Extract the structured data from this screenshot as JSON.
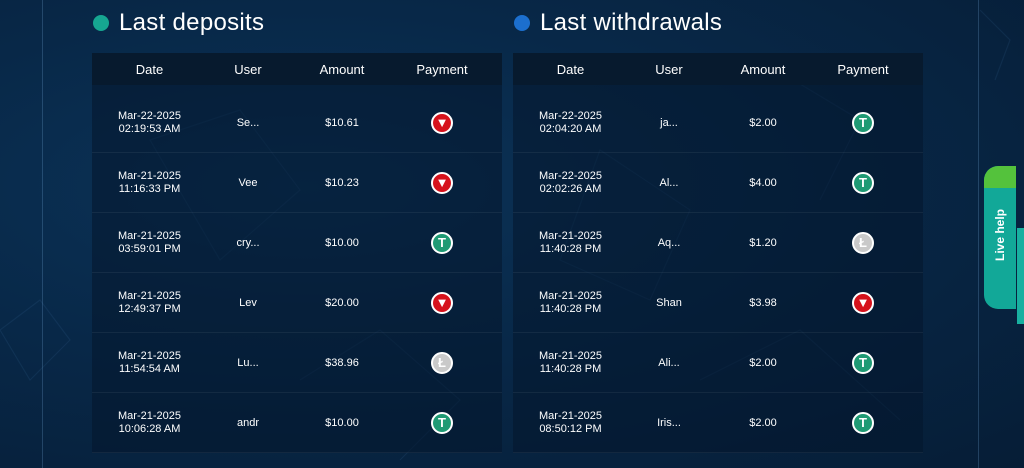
{
  "colors": {
    "deposits_dot": "#16a691",
    "withdrawals_dot": "#1c6fce",
    "live_help": "#12a898"
  },
  "deposits": {
    "title": "Last deposits",
    "headers": [
      "Date",
      "User",
      "Amount",
      "Payment"
    ],
    "rows": [
      {
        "date": "Mar-22-2025",
        "time": "02:19:53 AM",
        "user": "Se...",
        "amount": "$10.61",
        "payment": "tron-icon"
      },
      {
        "date": "Mar-21-2025",
        "time": "11:16:33 PM",
        "user": "Vee",
        "amount": "$10.23",
        "payment": "tron-icon"
      },
      {
        "date": "Mar-21-2025",
        "time": "03:59:01 PM",
        "user": "cry...",
        "amount": "$10.00",
        "payment": "tether-icon"
      },
      {
        "date": "Mar-21-2025",
        "time": "12:49:37 PM",
        "user": "Lev",
        "amount": "$20.00",
        "payment": "tron-icon"
      },
      {
        "date": "Mar-21-2025",
        "time": "11:54:54 AM",
        "user": "Lu...",
        "amount": "$38.96",
        "payment": "litecoin-icon"
      },
      {
        "date": "Mar-21-2025",
        "time": "10:06:28 AM",
        "user": "andr",
        "amount": "$10.00",
        "payment": "tether-icon"
      }
    ]
  },
  "withdrawals": {
    "title": "Last withdrawals",
    "headers": [
      "Date",
      "User",
      "Amount",
      "Payment"
    ],
    "rows": [
      {
        "date": "Mar-22-2025",
        "time": "02:04:20 AM",
        "user": "ja...",
        "amount": "$2.00",
        "payment": "tether-icon"
      },
      {
        "date": "Mar-22-2025",
        "time": "02:02:26 AM",
        "user": "Al...",
        "amount": "$4.00",
        "payment": "tether-icon"
      },
      {
        "date": "Mar-21-2025",
        "time": "11:40:28 PM",
        "user": "Aq...",
        "amount": "$1.20",
        "payment": "litecoin-icon"
      },
      {
        "date": "Mar-21-2025",
        "time": "11:40:28 PM",
        "user": "Shan",
        "amount": "$3.98",
        "payment": "tron-icon"
      },
      {
        "date": "Mar-21-2025",
        "time": "11:40:28 PM",
        "user": "Ali...",
        "amount": "$2.00",
        "payment": "tether-icon"
      },
      {
        "date": "Mar-21-2025",
        "time": "08:50:12 PM",
        "user": "Iris...",
        "amount": "$2.00",
        "payment": "tether-icon"
      }
    ]
  },
  "live_help": {
    "label": "Live help"
  }
}
